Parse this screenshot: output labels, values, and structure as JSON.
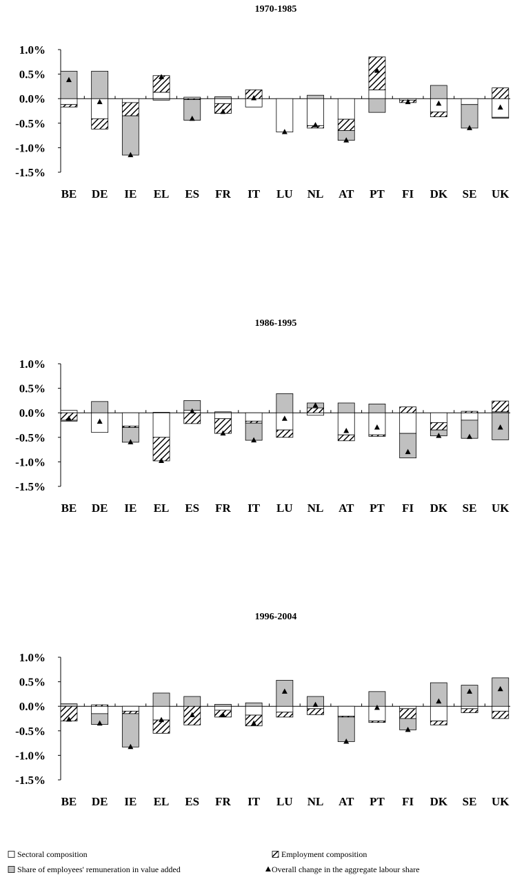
{
  "chart_data": [
    {
      "type": "bar",
      "stacked": true,
      "title": "1970-1985",
      "categories": [
        "BE",
        "DE",
        "IE",
        "EL",
        "ES",
        "FR",
        "IT",
        "LU",
        "NL",
        "AT",
        "PT",
        "FI",
        "DK",
        "SE",
        "UK"
      ],
      "ylim": [
        -1.5,
        1
      ],
      "yticks": [
        {
          "value": 1,
          "label": "1.0%"
        },
        {
          "value": 0.5,
          "label": "0.5%"
        },
        {
          "value": 0,
          "label": "0.0%"
        },
        {
          "value": -0.5,
          "label": "-0.5%"
        },
        {
          "value": -1,
          "label": "-1.0%"
        },
        {
          "value": -1.5,
          "label": "-1.5%"
        }
      ],
      "series": [
        {
          "values": [
            -0.12,
            -0.41,
            -0.08,
            0.13,
            0.03,
            -0.1,
            -0.17,
            -0.68,
            -0.55,
            -0.42,
            0.18,
            -0.03,
            -0.27,
            -0.12,
            -0.38
          ]
        },
        {
          "values": [
            -0.05,
            -0.21,
            -0.27,
            0.34,
            -0.02,
            -0.2,
            0.18,
            0,
            -0.05,
            -0.23,
            0.67,
            -0.05,
            -0.1,
            0,
            0.22
          ]
        },
        {
          "values": [
            0.56,
            0.56,
            -0.8,
            -0.03,
            -0.42,
            0.04,
            0,
            0,
            0.07,
            -0.2,
            -0.28,
            0,
            0.27,
            -0.48,
            -0.02
          ]
        },
        {
          "type": "scatter",
          "values": [
            0.38,
            -0.07,
            -1.15,
            0.44,
            -0.41,
            -0.27,
            0.01,
            -0.68,
            -0.54,
            -0.85,
            0.57,
            -0.07,
            -0.1,
            -0.6,
            -0.18
          ]
        }
      ]
    },
    {
      "type": "bar",
      "stacked": true,
      "title": "1986-1995",
      "categories": [
        "BE",
        "DE",
        "IE",
        "EL",
        "ES",
        "FR",
        "IT",
        "LU",
        "NL",
        "AT",
        "PT",
        "FI",
        "DK",
        "SE",
        "UK"
      ],
      "ylim": [
        -1.5,
        1
      ],
      "yticks": [
        {
          "value": 1,
          "label": "1.0%"
        },
        {
          "value": 0.5,
          "label": "0.5%"
        },
        {
          "value": 0,
          "label": "0.0%"
        },
        {
          "value": -0.5,
          "label": "-0.5%"
        },
        {
          "value": -1,
          "label": "-1.0%"
        },
        {
          "value": -1.5,
          "label": "-1.5%"
        }
      ],
      "series": [
        {
          "values": [
            0.05,
            -0.4,
            -0.27,
            -0.5,
            0.05,
            -0.12,
            -0.17,
            -0.35,
            -0.05,
            -0.45,
            -0.45,
            -0.42,
            -0.2,
            -0.15,
            0.02
          ]
        },
        {
          "values": [
            -0.15,
            0,
            -0.03,
            -0.48,
            -0.22,
            -0.3,
            -0.04,
            -0.15,
            0.1,
            -0.12,
            -0.03,
            0.12,
            -0.15,
            0.03,
            0.22
          ]
        },
        {
          "values": [
            -0.02,
            0.23,
            -0.3,
            0.01,
            0.2,
            0.02,
            -0.35,
            0.39,
            0.1,
            0.2,
            0.18,
            -0.5,
            -0.12,
            -0.37,
            -0.55
          ]
        },
        {
          "type": "scatter",
          "values": [
            -0.12,
            -0.18,
            -0.6,
            -0.98,
            0.03,
            -0.42,
            -0.56,
            -0.12,
            0.15,
            -0.37,
            -0.3,
            -0.8,
            -0.47,
            -0.49,
            -0.3
          ]
        }
      ]
    },
    {
      "type": "bar",
      "stacked": true,
      "title": "1996-2004",
      "categories": [
        "BE",
        "DE",
        "IE",
        "EL",
        "ES",
        "FR",
        "IT",
        "LU",
        "NL",
        "AT",
        "PT",
        "FI",
        "DK",
        "SE",
        "UK"
      ],
      "ylim": [
        -1.5,
        1
      ],
      "yticks": [
        {
          "value": 1,
          "label": "1.0%"
        },
        {
          "value": 0.5,
          "label": "0.5%"
        },
        {
          "value": 0,
          "label": "0.0%"
        },
        {
          "value": -0.5,
          "label": "-0.5%"
        },
        {
          "value": -1,
          "label": "-1.0%"
        },
        {
          "value": -1.5,
          "label": "-1.5%"
        }
      ],
      "series": [
        {
          "values": [
            0,
            -0.15,
            -0.1,
            -0.28,
            0,
            -0.08,
            -0.18,
            -0.12,
            -0.05,
            -0.2,
            -0.3,
            -0.05,
            -0.3,
            -0.05,
            -0.1
          ]
        },
        {
          "values": [
            -0.3,
            0.03,
            -0.05,
            -0.27,
            -0.38,
            -0.14,
            -0.22,
            -0.1,
            -0.12,
            -0.02,
            -0.03,
            -0.2,
            -0.08,
            -0.08,
            -0.15
          ]
        },
        {
          "values": [
            0.05,
            -0.22,
            -0.68,
            0.27,
            0.2,
            0.04,
            0.07,
            0.53,
            0.2,
            -0.5,
            0.3,
            -0.23,
            0.48,
            0.43,
            0.58
          ]
        },
        {
          "type": "scatter",
          "values": [
            -0.27,
            -0.35,
            -0.83,
            -0.28,
            -0.18,
            -0.18,
            -0.35,
            0.3,
            0.03,
            -0.72,
            -0.03,
            -0.48,
            0.1,
            0.3,
            0.35
          ]
        }
      ]
    }
  ],
  "legend": [
    {
      "name": "Sectoral composition",
      "color": "#ffffff"
    },
    {
      "name": "Employment composition",
      "color": "#ffffff",
      "hatch": true
    },
    {
      "name": "Share of employees' remuneration in value added",
      "color": "#c0c0c0"
    },
    {
      "name": "Overall change in the aggregate labour share",
      "color": "#000000",
      "marker": "triangle"
    }
  ]
}
